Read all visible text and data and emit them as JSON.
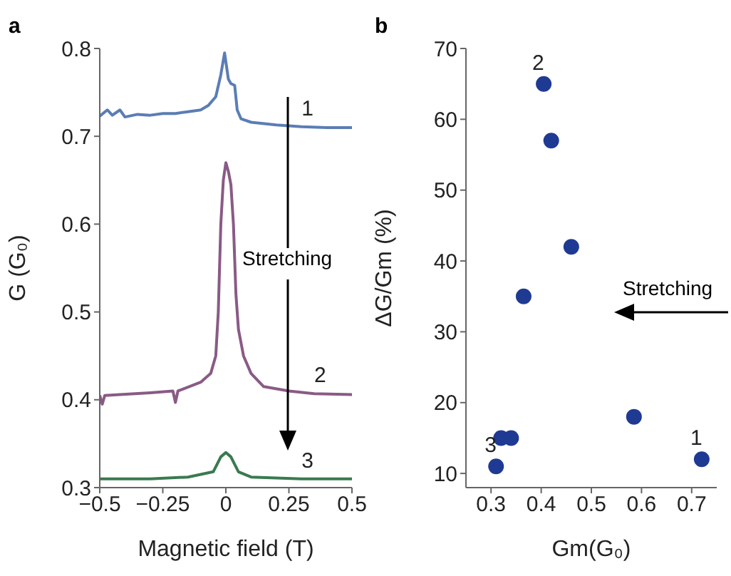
{
  "chart_data": [
    {
      "type": "line",
      "title": "a",
      "xlabel": "Magnetic field (T)",
      "ylabel": "G (G₀)",
      "xlim": [
        -0.5,
        0.5
      ],
      "xticks": [
        -0.5,
        -0.25,
        0,
        0.25,
        0.5
      ],
      "ylim": [
        0.3,
        0.8
      ],
      "yticks": [
        0.3,
        0.4,
        0.5,
        0.6,
        0.7,
        0.8
      ],
      "grid": false,
      "legend": false,
      "marker": "none",
      "annotations": [
        "Stretching"
      ],
      "series": [
        {
          "name": "1",
          "color": "#5a7db5",
          "x": [
            -0.5,
            -0.47,
            -0.45,
            -0.42,
            -0.4,
            -0.35,
            -0.3,
            -0.25,
            -0.2,
            -0.15,
            -0.1,
            -0.07,
            -0.04,
            -0.02,
            -0.005,
            0.01,
            0.02,
            0.035,
            0.045,
            0.06,
            0.1,
            0.2,
            0.3,
            0.4,
            0.5
          ],
          "values": [
            0.723,
            0.73,
            0.724,
            0.73,
            0.722,
            0.725,
            0.724,
            0.726,
            0.726,
            0.728,
            0.73,
            0.735,
            0.745,
            0.77,
            0.795,
            0.765,
            0.76,
            0.758,
            0.73,
            0.72,
            0.716,
            0.713,
            0.711,
            0.71,
            0.71
          ]
        },
        {
          "name": "2",
          "color": "#8a5a85",
          "x": [
            -0.5,
            -0.49,
            -0.48,
            -0.3,
            -0.21,
            -0.2,
            -0.19,
            -0.1,
            -0.06,
            -0.04,
            -0.03,
            -0.02,
            -0.01,
            0,
            0.01,
            0.02,
            0.03,
            0.04,
            0.05,
            0.07,
            0.1,
            0.15,
            0.25,
            0.35,
            0.5
          ],
          "values": [
            0.405,
            0.395,
            0.405,
            0.408,
            0.41,
            0.397,
            0.41,
            0.42,
            0.43,
            0.45,
            0.5,
            0.6,
            0.65,
            0.67,
            0.66,
            0.645,
            0.6,
            0.52,
            0.48,
            0.45,
            0.43,
            0.415,
            0.41,
            0.407,
            0.406
          ]
        },
        {
          "name": "3",
          "color": "#3a7a50",
          "x": [
            -0.5,
            -0.3,
            -0.15,
            -0.05,
            -0.02,
            0,
            0.02,
            0.05,
            0.1,
            0.3,
            0.5
          ],
          "values": [
            0.31,
            0.31,
            0.312,
            0.318,
            0.335,
            0.34,
            0.335,
            0.318,
            0.312,
            0.31,
            0.31
          ]
        }
      ]
    },
    {
      "type": "scatter",
      "title": "b",
      "xlabel": "Gm(G₀)",
      "ylabel": "ΔG/Gm (%)",
      "xlim": [
        0.25,
        0.75
      ],
      "xticks": [
        0.3,
        0.4,
        0.5,
        0.6,
        0.7
      ],
      "ylim": [
        8,
        70
      ],
      "yticks": [
        10,
        20,
        30,
        40,
        50,
        60,
        70
      ],
      "grid": false,
      "legend": false,
      "marker": "circle",
      "annotations": [
        "Stretching",
        {
          "text": "2",
          "x": 0.405,
          "y": 65
        },
        {
          "text": "3",
          "x": 0.31,
          "y": 11
        },
        {
          "text": "1",
          "x": 0.72,
          "y": 12
        }
      ],
      "series": [
        {
          "color": "#1f3a93",
          "x": [
            0.405,
            0.42,
            0.46,
            0.365,
            0.585,
            0.72,
            0.31,
            0.32,
            0.34
          ],
          "values": [
            65,
            57,
            42,
            35,
            18,
            12,
            11,
            15,
            15
          ]
        }
      ]
    }
  ]
}
